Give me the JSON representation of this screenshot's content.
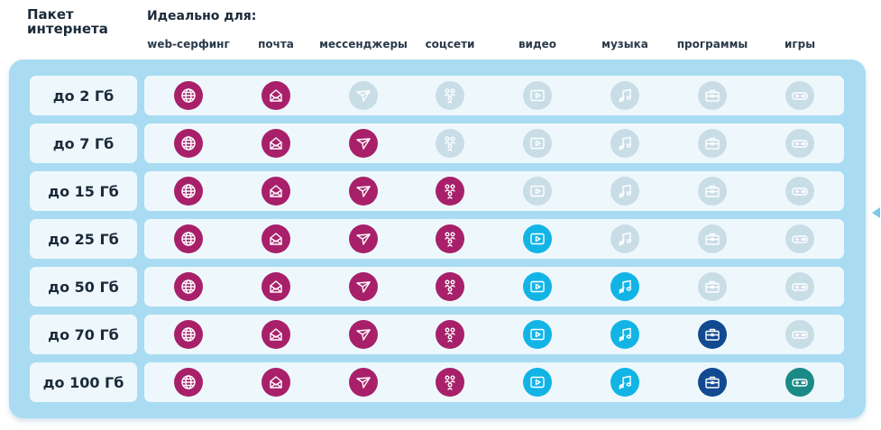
{
  "header": {
    "package_title": "Пакет интернета",
    "ideal_for": "Идеально для:"
  },
  "columns": [
    {
      "label": "web-серфинг",
      "icon": "globe-icon"
    },
    {
      "label": "почта",
      "icon": "envelope-icon"
    },
    {
      "label": "мессенджеры",
      "icon": "paper-plane-icon"
    },
    {
      "label": "соцсети",
      "icon": "people-network-icon"
    },
    {
      "label": "видео",
      "icon": "video-play-icon"
    },
    {
      "label": "музыка",
      "icon": "music-note-icon"
    },
    {
      "label": "программы",
      "icon": "briefcase-icon"
    },
    {
      "label": "игры",
      "icon": "gamepad-icon"
    }
  ],
  "colors": {
    "web": "#a8206a",
    "mail": "#a8206a",
    "messenger": "#a8206a",
    "social": "#a8206a",
    "video": "#12b4e6",
    "music": "#12b4e6",
    "programs": "#124a92",
    "games": "#1a8a86",
    "inactive": "#c9dde6"
  },
  "rows": [
    {
      "label": "до 2 Гб",
      "enabled": [
        true,
        true,
        false,
        false,
        false,
        false,
        false,
        false
      ]
    },
    {
      "label": "до 7 Гб",
      "enabled": [
        true,
        true,
        true,
        false,
        false,
        false,
        false,
        false
      ]
    },
    {
      "label": "до 15 Гб",
      "enabled": [
        true,
        true,
        true,
        true,
        false,
        false,
        false,
        false
      ]
    },
    {
      "label": "до 25 Гб",
      "enabled": [
        true,
        true,
        true,
        true,
        true,
        false,
        false,
        false
      ]
    },
    {
      "label": "до 50 Гб",
      "enabled": [
        true,
        true,
        true,
        true,
        true,
        true,
        false,
        false
      ]
    },
    {
      "label": "до 70 Гб",
      "enabled": [
        true,
        true,
        true,
        true,
        true,
        true,
        true,
        false
      ]
    },
    {
      "label": "до 100 Гб",
      "enabled": [
        true,
        true,
        true,
        true,
        true,
        true,
        true,
        true
      ]
    }
  ]
}
